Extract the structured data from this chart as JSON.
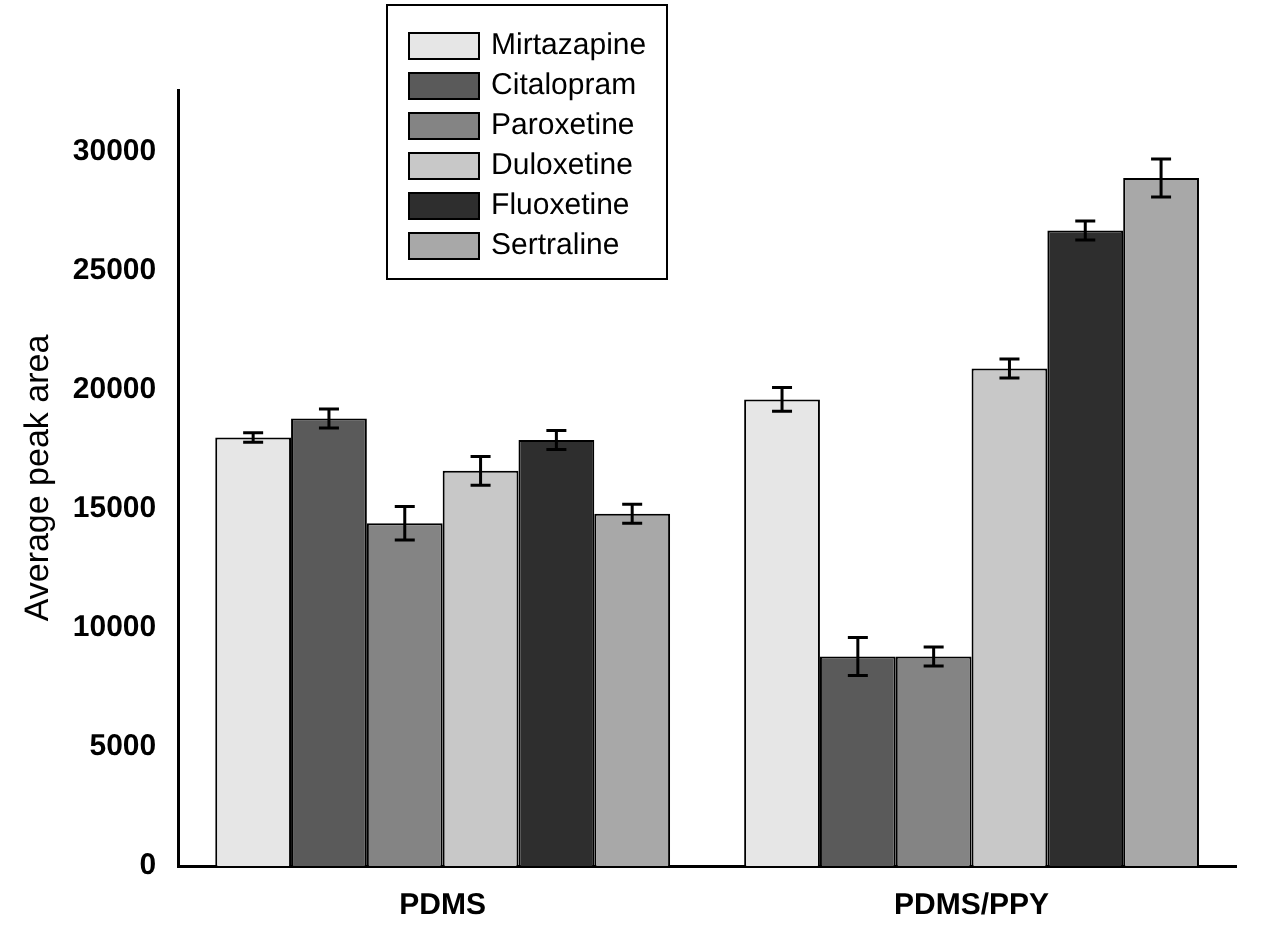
{
  "chart_data": {
    "type": "bar",
    "ylabel": "Average peak area",
    "categories": [
      "PDMS",
      "PDMS/PPY"
    ],
    "series": [
      {
        "name": "Mirtazapine",
        "color": "#e6e6e6",
        "values": [
          18000,
          19600
        ],
        "errors": [
          200,
          500
        ]
      },
      {
        "name": "Citalopram",
        "color": "#5a5a5a",
        "values": [
          18800,
          8800
        ],
        "errors": [
          400,
          800
        ]
      },
      {
        "name": "Paroxetine",
        "color": "#848484",
        "values": [
          14400,
          8800
        ],
        "errors": [
          700,
          400
        ]
      },
      {
        "name": "Duloxetine",
        "color": "#c8c8c8",
        "values": [
          16600,
          20900
        ],
        "errors": [
          600,
          400
        ]
      },
      {
        "name": "Fluoxetine",
        "color": "#2e2e2e",
        "values": [
          17900,
          26700
        ],
        "errors": [
          400,
          400
        ]
      },
      {
        "name": "Sertraline",
        "color": "#a8a8a8",
        "values": [
          14800,
          28900
        ],
        "errors": [
          400,
          800
        ]
      }
    ],
    "ylim": [
      0,
      32600
    ],
    "yticks": [
      0,
      5000,
      10000,
      15000,
      20000,
      25000,
      30000
    ],
    "grid": false,
    "legend": "top"
  }
}
